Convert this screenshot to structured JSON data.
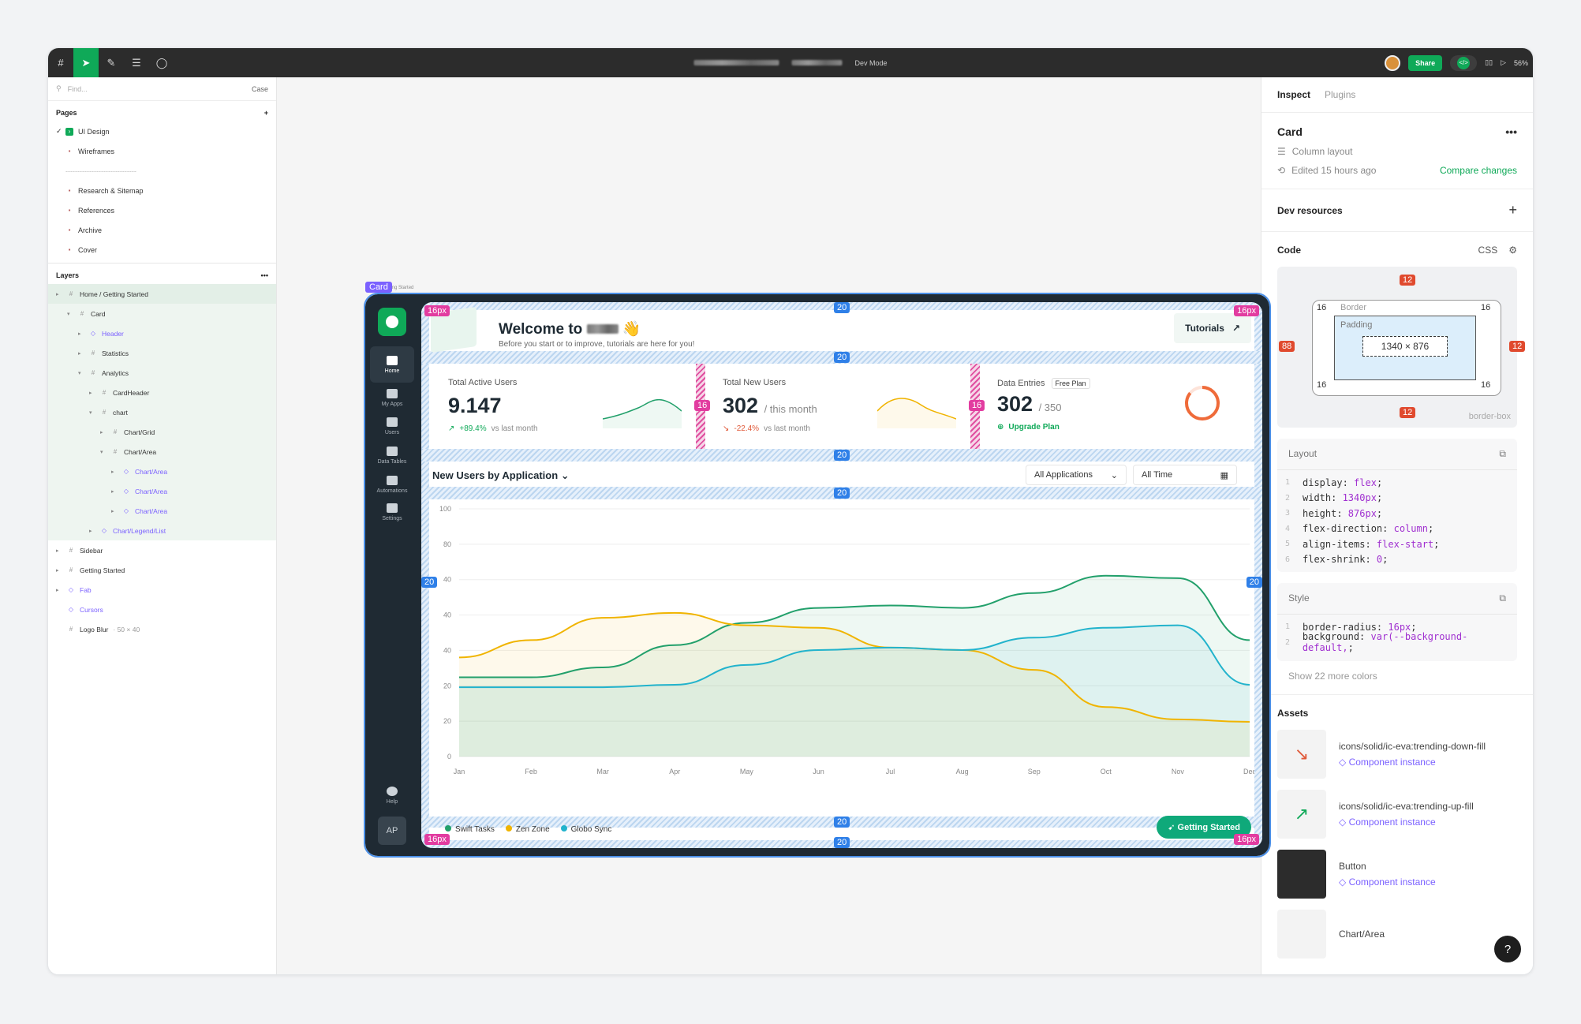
{
  "toolbar": {
    "mode": "Dev Mode",
    "share": "Share",
    "zoom": "56%"
  },
  "left": {
    "search_placeholder": "Find...",
    "case": "Case",
    "pages_title": "Pages",
    "pages": [
      "UI Design",
      "Wireframes",
      "------------------------------",
      "Research & Sitemap",
      "References",
      "Archive",
      "Cover"
    ],
    "layers_title": "Layers",
    "layers": [
      {
        "label": "Home / Getting Started",
        "indent": 0
      },
      {
        "label": "Card",
        "indent": 1
      },
      {
        "label": "Header",
        "indent": 2
      },
      {
        "label": "Statistics",
        "indent": 2
      },
      {
        "label": "Analytics",
        "indent": 2
      },
      {
        "label": "CardHeader",
        "indent": 3
      },
      {
        "label": "chart",
        "indent": 3
      },
      {
        "label": "Chart/Grid",
        "indent": 4
      },
      {
        "label": "Chart/Area",
        "indent": 4
      },
      {
        "label": "Chart/Area",
        "indent": 5
      },
      {
        "label": "Chart/Area",
        "indent": 5
      },
      {
        "label": "Chart/Area",
        "indent": 5
      },
      {
        "label": "Chart/Legend/List",
        "indent": 3
      },
      {
        "label": "Sidebar",
        "indent": 0
      },
      {
        "label": "Getting Started",
        "indent": 0
      },
      {
        "label": "Fab",
        "indent": 0
      },
      {
        "label": "Cursors",
        "indent": 0
      },
      {
        "label": "Logo Blur",
        "indent": 0,
        "note": "50 × 40"
      }
    ]
  },
  "right": {
    "tab_inspect": "Inspect",
    "tab_plugins": "Plugins",
    "title": "Card",
    "layout": "Column layout",
    "edited": "Edited 15 hours ago",
    "compare": "Compare changes",
    "dev_resources": "Dev resources",
    "code": "Code",
    "lang": "CSS",
    "box": {
      "margin_top": "12",
      "margin_bottom": "12",
      "margin_left": "88",
      "margin_right": "12",
      "corner": "16",
      "border": "Border",
      "padding": "Padding",
      "size": "1340 × 876",
      "mode": "border-box",
      "dash": "-"
    },
    "layout_title": "Layout",
    "layout_code": [
      {
        "p": "display",
        "v": "flex"
      },
      {
        "p": "width",
        "v": "1340px"
      },
      {
        "p": "height",
        "v": "876px"
      },
      {
        "p": "flex-direction",
        "v": "column"
      },
      {
        "p": "align-items",
        "v": "flex-start"
      },
      {
        "p": "flex-shrink",
        "v": "0"
      }
    ],
    "style_title": "Style",
    "style_code": [
      {
        "p": "border-radius",
        "v": "16px"
      },
      {
        "p": "background",
        "v": "var(--background-default,"
      }
    ],
    "more_colors": "Show 22 more colors",
    "assets_title": "Assets",
    "assets": [
      {
        "name": "icons/solid/ic-eva:trending-down-fill",
        "sub": "Component instance"
      },
      {
        "name": "icons/solid/ic-eva:trending-up-fill",
        "sub": "Component instance"
      },
      {
        "name": "Button",
        "sub": "Component instance"
      },
      {
        "name": "Chart/Area",
        "sub": ""
      }
    ]
  },
  "design": {
    "breadcrumb": "Home / Getting Started",
    "tag": "Card",
    "sidebar": [
      "Home",
      "My Apps",
      "Users",
      "Data Tables",
      "Automations",
      "Settings",
      "Help"
    ],
    "avatar": "AP",
    "welcome": "Welcome to",
    "welcome_sub": "Before you start or to improve, tutorials are here for you!",
    "tutorials": "Tutorials",
    "stats": [
      {
        "title": "Total Active Users",
        "value": "9.147",
        "suffix": "",
        "delta": "+89.4%",
        "note": "vs last month"
      },
      {
        "title": "Total New Users",
        "value": "302",
        "suffix": "/ this month",
        "delta": "-22.4%",
        "note": "vs last month"
      },
      {
        "title": "Data Entries",
        "value": "302",
        "suffix": "/ 350",
        "badge": "Free Plan",
        "link": "Upgrade Plan"
      }
    ],
    "chart_heading": "New Users by Application",
    "filter_apps": "All Applications",
    "filter_time": "All Time",
    "cta": "Getting Started",
    "spacing": {
      "s20": "20",
      "s16": "16",
      "r16": "16px"
    }
  },
  "chart_data": {
    "type": "area",
    "x": [
      "Jan",
      "Feb",
      "Mar",
      "Apr",
      "May",
      "Jun",
      "Jul",
      "Aug",
      "Sep",
      "Oct",
      "Nov",
      "Dec"
    ],
    "ytick_labels": [
      "100",
      "80",
      "40",
      "40",
      "40",
      "20",
      "20",
      "0"
    ],
    "series": [
      {
        "name": "Swift Tasks",
        "color": "#22a06b",
        "values": [
          32,
          32,
          36,
          45,
          54,
          60,
          61,
          60,
          66,
          73,
          72,
          47
        ]
      },
      {
        "name": "Zen Zone",
        "color": "#f0b400",
        "values": [
          40,
          47,
          56,
          58,
          53,
          52,
          44,
          43,
          35,
          20,
          15,
          14
        ]
      },
      {
        "name": "Globo Sync",
        "color": "#22b3cc",
        "values": [
          28,
          28,
          28,
          29,
          37,
          43,
          44,
          43,
          48,
          52,
          53,
          29
        ]
      }
    ]
  }
}
